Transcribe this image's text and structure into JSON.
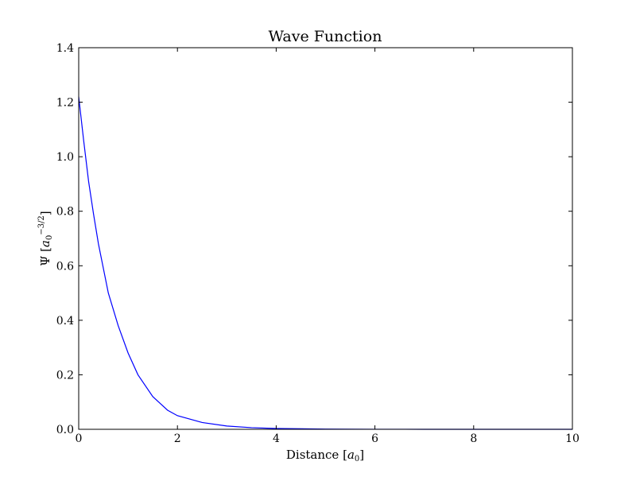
{
  "chart_data": {
    "type": "line",
    "title": "Wave Function",
    "xlabel": {
      "pre": "Distance [",
      "var": "a",
      "sub": "0",
      "post": "]"
    },
    "ylabel": {
      "pre": "Ψ [",
      "var": "a",
      "sub": "0",
      "sup": "−3/2",
      "post": "]"
    },
    "xlim": [
      0,
      10
    ],
    "ylim": [
      0,
      1.4
    ],
    "x_ticks": [
      0,
      2,
      4,
      6,
      8,
      10
    ],
    "x_tick_labels": [
      "0",
      "2",
      "4",
      "6",
      "8",
      "10"
    ],
    "y_ticks": [
      0,
      0.2,
      0.4,
      0.6,
      0.8,
      1.0,
      1.2,
      1.4
    ],
    "y_tick_labels": [
      "0.0",
      "0.2",
      "0.4",
      "0.6",
      "0.8",
      "1.0",
      "1.2",
      "1.4"
    ],
    "grid": false,
    "series": [
      {
        "color": "#0000ff",
        "x": [
          0,
          0.1,
          0.2,
          0.3,
          0.4,
          0.5,
          0.6,
          0.8,
          1.0,
          1.2,
          1.5,
          1.8,
          2.0,
          2.5,
          3.0,
          3.5,
          4.0,
          5.0,
          6.0,
          7.0,
          8.0,
          9.0,
          10.0
        ],
        "y": [
          1.22,
          1.06,
          0.91,
          0.79,
          0.68,
          0.59,
          0.5,
          0.38,
          0.28,
          0.2,
          0.12,
          0.07,
          0.05,
          0.025,
          0.012,
          0.006,
          0.003,
          0.0008,
          0.0002,
          5e-05,
          1e-05,
          0.0,
          0.0
        ]
      }
    ]
  }
}
